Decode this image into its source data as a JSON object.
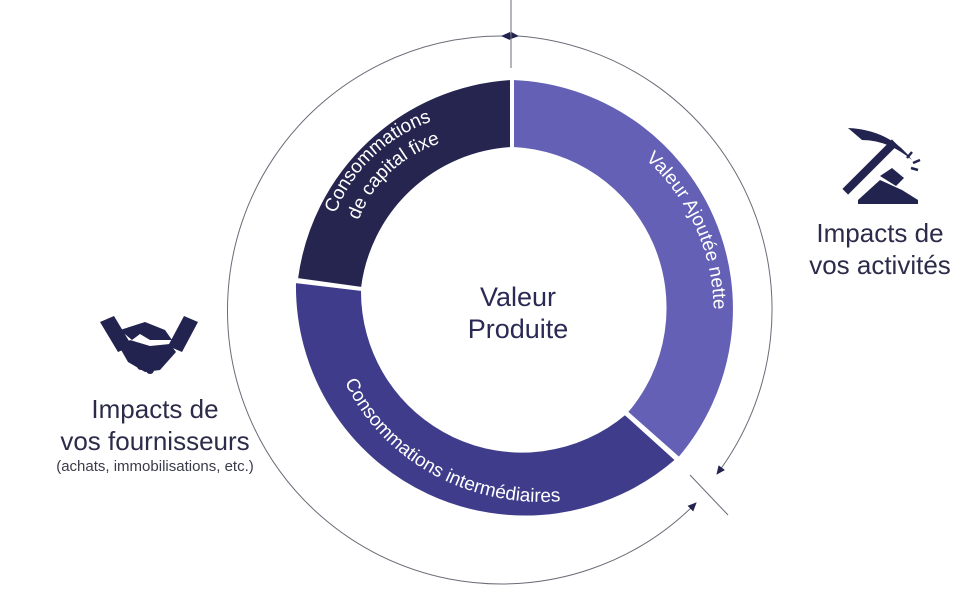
{
  "diagram": {
    "center": {
      "line1": "Valeur",
      "line2": "Produite"
    },
    "segments": [
      {
        "id": "cfc",
        "line1": "Consommations",
        "line2": "de capital fixe",
        "color": "#262550"
      },
      {
        "id": "van",
        "line1": "Valeur Ajoutée nette",
        "color": "#6360b6"
      },
      {
        "id": "ci",
        "line1": "Consommations intermédiaires",
        "color": "#3f3d8b"
      }
    ],
    "right_caption": {
      "title_line1": "Impacts de",
      "title_line2": "vos activités",
      "icon": "pickaxe-icon"
    },
    "left_caption": {
      "title_line1": "Impacts de",
      "title_line2": "vos fournisseurs",
      "subtitle": "(achats, immobilisations, etc.)",
      "icon": "handshake-icon"
    },
    "colors": {
      "text": "#2c2c4a",
      "arc": "#4a4a5a",
      "icon": "#232350"
    }
  }
}
